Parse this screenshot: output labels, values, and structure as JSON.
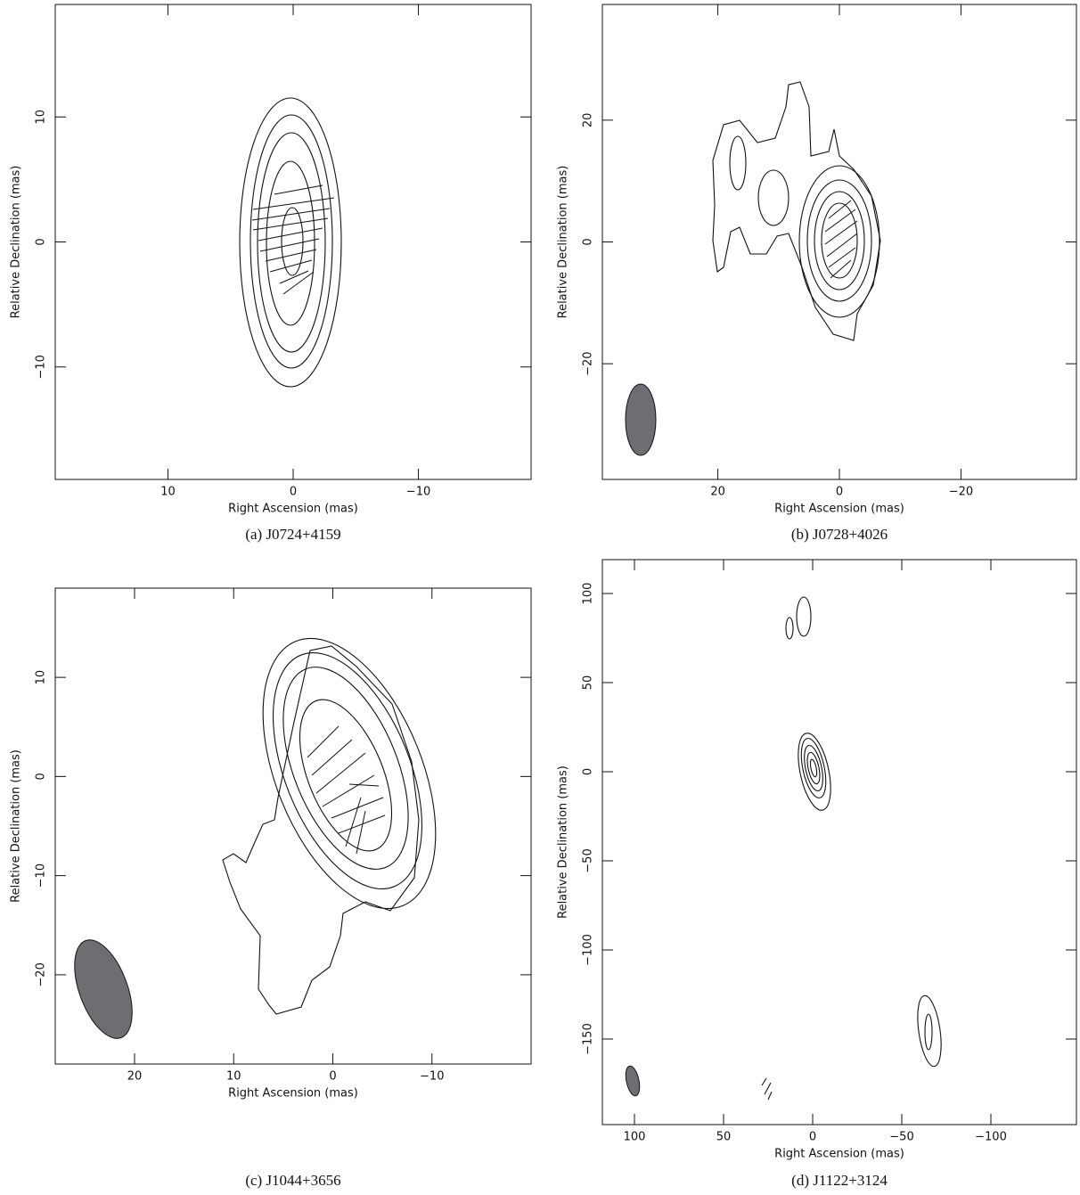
{
  "chart_data": [
    {
      "type": "contour",
      "title": "(a)  J0724+4159",
      "xlabel": "Right Ascension  (mas)",
      "ylabel": "Relative Declination  (mas)",
      "xlim": [
        19,
        -19
      ],
      "ylim": [
        -19,
        19
      ],
      "xticks": [
        10,
        0,
        {
          "value": -10,
          "label": "−10"
        }
      ],
      "yticks": [
        {
          "value": -10,
          "label": "−10"
        },
        0,
        10
      ]
    },
    {
      "type": "contour",
      "title": "(b)  J0728+4026",
      "xlabel": "Right Ascension  (mas)",
      "ylabel": "Relative Declination  (mas)",
      "xlim": [
        39,
        -39
      ],
      "ylim": [
        -39,
        39
      ],
      "xticks": [
        20,
        0,
        {
          "value": -20,
          "label": "−20"
        }
      ],
      "yticks": [
        {
          "value": -20,
          "label": "−20"
        },
        0,
        20
      ]
    },
    {
      "type": "contour",
      "title": "(c)  J1044+3656",
      "xlabel": "Right Ascension  (mas)",
      "ylabel": "Relative Declination  (mas)",
      "xlim": [
        28,
        -20
      ],
      "ylim": [
        -29,
        19
      ],
      "xticks": [
        20,
        10,
        0,
        {
          "value": -10,
          "label": "−10"
        }
      ],
      "yticks": [
        {
          "value": -20,
          "label": "−20"
        },
        {
          "value": -10,
          "label": "−10"
        },
        0,
        10
      ]
    },
    {
      "type": "contour",
      "title": "(d)  J1122+3124",
      "xlabel": "Right Ascension  (mas)",
      "ylabel": "Relative Declination  (mas)",
      "xlim": [
        118,
        -148
      ],
      "ylim": [
        -198,
        119
      ],
      "xticks": [
        100,
        50,
        0,
        {
          "value": -50,
          "label": "−50"
        },
        {
          "value": -100,
          "label": "−100"
        }
      ],
      "yticks": [
        {
          "value": -150,
          "label": "−150"
        },
        {
          "value": -100,
          "label": "−100"
        },
        {
          "value": -50,
          "label": "−50"
        },
        0,
        50,
        100
      ]
    }
  ]
}
